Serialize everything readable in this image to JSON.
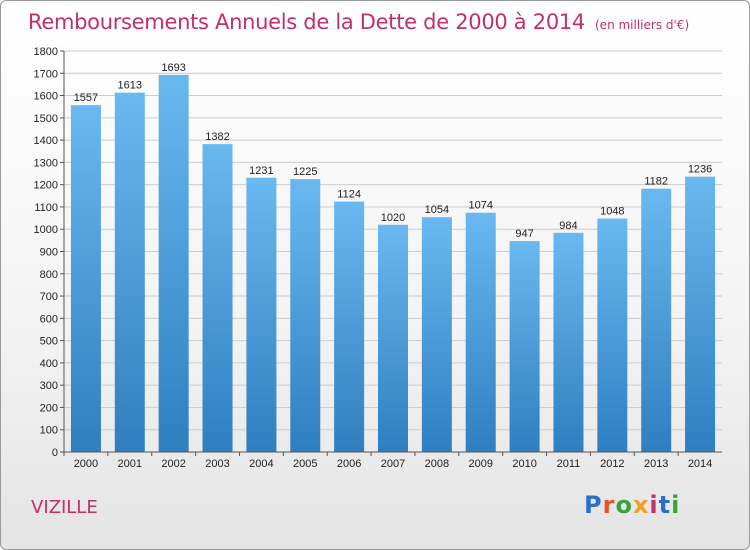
{
  "header": {
    "title": "Remboursements Annuels de la Dette de 2000 à 2014",
    "subtitle": "(en milliers d'€)"
  },
  "footer": {
    "place": "VIZILLE",
    "logo_text": "Proxiti",
    "logo_colors": [
      "#2a6fc9",
      "#e8542a",
      "#3aa33a",
      "#f0a020",
      "#c0306a",
      "#2a6fc9",
      "#3aa33a"
    ]
  },
  "colors": {
    "title": "#c0306a",
    "bar_top": "#6ab8f0",
    "bar_bottom": "#2f7fc0",
    "grid": "#cccccc"
  },
  "chart_data": {
    "type": "bar",
    "title": "Remboursements Annuels de la Dette de 2000 à 2014",
    "subtitle": "(en milliers d'€)",
    "xlabel": "",
    "ylabel": "",
    "categories": [
      "2000",
      "2001",
      "2002",
      "2003",
      "2004",
      "2005",
      "2006",
      "2007",
      "2008",
      "2009",
      "2010",
      "2011",
      "2012",
      "2013",
      "2014"
    ],
    "values": [
      1557,
      1613,
      1693,
      1382,
      1231,
      1225,
      1124,
      1020,
      1054,
      1074,
      947,
      984,
      1048,
      1182,
      1236
    ],
    "ylim": [
      0,
      1800
    ],
    "yticks": [
      0,
      100,
      200,
      300,
      400,
      500,
      600,
      700,
      800,
      900,
      1000,
      1100,
      1200,
      1300,
      1400,
      1500,
      1600,
      1700,
      1800
    ],
    "grid": true,
    "legend": "none"
  }
}
